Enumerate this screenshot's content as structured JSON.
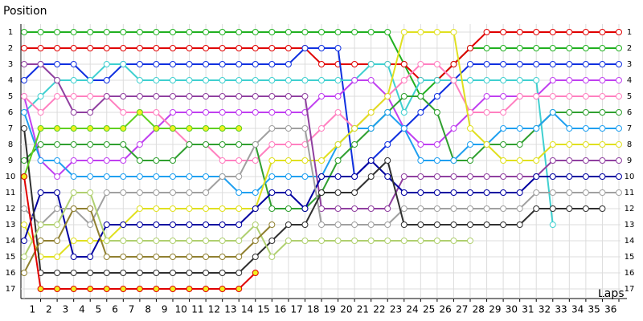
{
  "chart_data": {
    "type": "line",
    "x_label": "Laps",
    "y_label": "Position",
    "xlim": [
      0,
      36
    ],
    "ylim": [
      1,
      17
    ],
    "y_inverted": true,
    "grid": true,
    "xticks": [
      1,
      2,
      3,
      4,
      5,
      6,
      7,
      8,
      9,
      10,
      11,
      12,
      13,
      14,
      15,
      16,
      17,
      18,
      19,
      20,
      21,
      22,
      23,
      24,
      25,
      26,
      27,
      28,
      29,
      30,
      31,
      32,
      33,
      34,
      35,
      36
    ],
    "yticks": [
      1,
      2,
      3,
      4,
      5,
      6,
      7,
      8,
      9,
      10,
      11,
      12,
      13,
      14,
      15,
      16,
      17
    ],
    "x": [
      0,
      1,
      2,
      3,
      4,
      5,
      6,
      7,
      8,
      9,
      10,
      11,
      12,
      13,
      14,
      15,
      16,
      17,
      18,
      19,
      20,
      21,
      22,
      23,
      24,
      25,
      26,
      27,
      28,
      29,
      30,
      31,
      32,
      33,
      34,
      35,
      36
    ],
    "series": [
      {
        "color": "#20b020",
        "marker_fill": "#ffffff",
        "values": [
          1,
          1,
          1,
          1,
          1,
          1,
          1,
          1,
          1,
          1,
          1,
          1,
          1,
          1,
          1,
          1,
          1,
          1,
          1,
          1,
          1,
          1,
          1,
          3,
          5,
          4,
          3,
          2,
          2,
          2,
          2,
          2,
          2,
          2,
          2,
          2,
          2
        ]
      },
      {
        "color": "#e00000",
        "marker_fill": "#ffffff",
        "values": [
          2,
          2,
          2,
          2,
          2,
          2,
          2,
          2,
          2,
          2,
          2,
          2,
          2,
          2,
          2,
          2,
          2,
          2,
          3,
          3,
          3,
          3,
          3,
          3,
          4,
          4,
          3,
          2,
          1,
          1,
          1,
          1,
          1,
          1,
          1,
          1,
          1
        ]
      },
      {
        "color": "#1030e0",
        "marker_fill": "#ffffff",
        "values": [
          4,
          3,
          3,
          3,
          4,
          4,
          3,
          3,
          3,
          3,
          3,
          3,
          3,
          3,
          3,
          3,
          3,
          2,
          2,
          2,
          10,
          9,
          8,
          7,
          6,
          5,
          4,
          3,
          3,
          3,
          3,
          3,
          3,
          3,
          3,
          3,
          3
        ]
      },
      {
        "color": "#40d0d0",
        "marker_fill": "#ffffff",
        "values": [
          6,
          5,
          4,
          4,
          4,
          3,
          3,
          4,
          4,
          4,
          4,
          4,
          4,
          4,
          4,
          4,
          4,
          4,
          4,
          4,
          4,
          3,
          3,
          6,
          4,
          4,
          4,
          4,
          4,
          4,
          4,
          4,
          13,
          null,
          null,
          null,
          null
        ]
      },
      {
        "color": "#c040f0",
        "marker_fill": "#ffffff",
        "values": [
          5,
          9,
          10,
          9,
          9,
          9,
          9,
          8,
          7,
          6,
          6,
          6,
          6,
          6,
          6,
          6,
          6,
          6,
          5,
          5,
          4,
          4,
          5,
          7,
          8,
          8,
          7,
          6,
          5,
          5,
          5,
          5,
          4,
          4,
          4,
          4,
          4
        ]
      },
      {
        "color": "#ff80c0",
        "marker_fill": "#ffffff",
        "values": [
          5,
          6,
          5,
          5,
          5,
          5,
          6,
          6,
          6,
          7,
          8,
          8,
          9,
          9,
          9,
          8,
          8,
          8,
          7,
          6,
          7,
          6,
          5,
          4,
          3,
          3,
          4,
          6,
          6,
          6,
          5,
          5,
          5,
          5,
          5,
          5,
          5
        ]
      },
      {
        "color": "#30a030",
        "marker_fill": "#ffffff",
        "values": [
          9,
          8,
          8,
          8,
          8,
          8,
          8,
          9,
          9,
          9,
          8,
          8,
          8,
          8,
          8,
          12,
          12,
          12,
          11,
          9,
          8,
          7,
          6,
          5,
          5,
          6,
          9,
          9,
          8,
          8,
          8,
          7,
          6,
          6,
          6,
          6,
          6
        ]
      },
      {
        "color": "#20a0f0",
        "marker_fill": "#ffffff",
        "values": [
          6,
          9,
          9,
          10,
          10,
          10,
          10,
          10,
          10,
          10,
          10,
          10,
          10,
          11,
          11,
          10,
          10,
          10,
          10,
          8,
          7,
          7,
          6,
          7,
          9,
          9,
          9,
          8,
          8,
          7,
          7,
          7,
          6,
          7,
          7,
          7,
          7
        ]
      },
      {
        "color": "#e0e020",
        "marker_fill": "#ffffff",
        "values": [
          13,
          15,
          15,
          14,
          14,
          14,
          13,
          12,
          12,
          12,
          12,
          12,
          12,
          12,
          12,
          9,
          9,
          9,
          9,
          8,
          7,
          6,
          5,
          1,
          1,
          1,
          1,
          7,
          8,
          9,
          9,
          9,
          8,
          8,
          8,
          8,
          8
        ]
      },
      {
        "color": "#9040a0",
        "marker_fill": "#ffffff",
        "values": [
          3,
          3,
          4,
          6,
          6,
          5,
          5,
          5,
          5,
          5,
          5,
          5,
          5,
          5,
          5,
          5,
          5,
          5,
          12,
          12,
          12,
          12,
          12,
          10,
          10,
          10,
          10,
          10,
          10,
          10,
          10,
          10,
          9,
          9,
          9,
          9,
          9
        ]
      },
      {
        "color": "#0000a0",
        "marker_fill": "#ffffff",
        "values": [
          14,
          11,
          11,
          15,
          15,
          13,
          13,
          13,
          13,
          13,
          13,
          13,
          13,
          13,
          12,
          11,
          11,
          12,
          10,
          10,
          10,
          9,
          10,
          11,
          11,
          11,
          11,
          11,
          11,
          11,
          11,
          10,
          10,
          10,
          10,
          10,
          10
        ]
      },
      {
        "color": "#a0a0a0",
        "marker_fill": "#ffffff",
        "values": [
          12,
          13,
          12,
          12,
          13,
          11,
          11,
          11,
          11,
          11,
          11,
          11,
          10,
          10,
          8,
          7,
          7,
          7,
          13,
          13,
          13,
          13,
          13,
          12,
          12,
          12,
          12,
          12,
          12,
          12,
          12,
          11,
          11,
          11,
          11,
          11,
          11
        ]
      },
      {
        "color": "#303030",
        "marker_fill": "#ffffff",
        "values": [
          7,
          16,
          16,
          16,
          16,
          16,
          16,
          16,
          16,
          16,
          16,
          16,
          16,
          16,
          15,
          14,
          13,
          13,
          11,
          11,
          11,
          10,
          9,
          13,
          13,
          13,
          13,
          13,
          13,
          13,
          13,
          12,
          12,
          12,
          12,
          12,
          null
        ]
      },
      {
        "color": "#b0d070",
        "marker_fill": "#ffffff",
        "values": [
          15,
          13,
          13,
          11,
          11,
          14,
          14,
          14,
          14,
          14,
          14,
          14,
          14,
          14,
          13,
          15,
          14,
          14,
          14,
          14,
          14,
          14,
          14,
          14,
          14,
          14,
          14,
          14,
          null,
          null,
          null,
          null,
          null,
          null,
          null,
          null,
          null
        ]
      },
      {
        "color": "#908030",
        "marker_fill": "#ffffff",
        "values": [
          16,
          14,
          14,
          12,
          12,
          15,
          15,
          15,
          15,
          15,
          15,
          15,
          15,
          15,
          14,
          13,
          null,
          null,
          null,
          null,
          null,
          null,
          null,
          null,
          null,
          null,
          null,
          null,
          null,
          null,
          null,
          null,
          null,
          null,
          null,
          null,
          null
        ]
      },
      {
        "color": "#60d020",
        "marker_fill": "#f0f020",
        "values": [
          10,
          7,
          7,
          7,
          7,
          7,
          7,
          6,
          7,
          7,
          7,
          7,
          7,
          7,
          null,
          null,
          null,
          null,
          null,
          null,
          null,
          null,
          null,
          null,
          null,
          null,
          null,
          null,
          null,
          null,
          null,
          null,
          null,
          null,
          null,
          null,
          null
        ]
      },
      {
        "color": "#e00000",
        "marker_fill": "#f0f020",
        "values": [
          10,
          17,
          17,
          17,
          17,
          17,
          17,
          17,
          17,
          17,
          17,
          17,
          17,
          17,
          16,
          null,
          null,
          null,
          null,
          null,
          null,
          null,
          null,
          null,
          null,
          null,
          null,
          null,
          null,
          null,
          null,
          null,
          null,
          null,
          null,
          null,
          null
        ]
      }
    ]
  }
}
